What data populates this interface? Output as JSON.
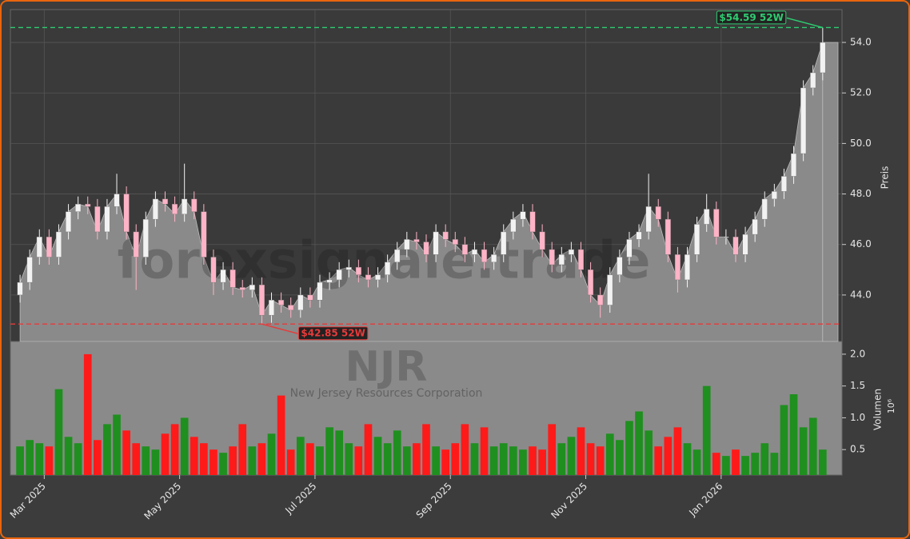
{
  "chart_data": {
    "type": "candlestick",
    "watermark": "forexsignale.trade",
    "symbol": "NJR",
    "company": "New Jersey Resources Corporation",
    "y_label": "Preis",
    "y2_label": "Volumen",
    "volume_unit": "10⁶",
    "x": [
      1,
      2,
      3,
      4,
      5,
      6,
      7,
      8,
      9,
      10,
      11,
      12,
      13,
      14,
      15,
      16,
      17,
      18,
      19,
      20,
      21,
      22,
      23,
      24,
      25,
      26,
      27,
      28,
      29,
      30,
      31,
      32,
      33,
      34,
      35,
      36,
      37,
      38,
      39,
      40,
      41,
      42,
      43,
      44,
      45,
      46,
      47,
      48,
      49,
      50,
      51,
      52,
      53,
      54,
      55,
      56,
      57,
      58,
      59,
      60,
      61,
      62,
      63,
      64,
      65,
      66,
      67,
      68,
      69,
      70,
      71,
      72,
      73,
      74,
      75,
      76,
      77,
      78,
      79,
      80,
      81,
      82,
      83,
      84
    ],
    "open": [
      44.0,
      44.5,
      45.5,
      46.3,
      45.5,
      46.5,
      47.3,
      47.6,
      47.5,
      46.5,
      47.5,
      48.0,
      46.5,
      45.5,
      47.0,
      47.8,
      47.6,
      47.2,
      47.8,
      47.3,
      45.5,
      44.5,
      45.0,
      44.3,
      44.2,
      44.4,
      43.2,
      43.8,
      43.6,
      43.4,
      44.0,
      43.8,
      44.5,
      44.6,
      45.0,
      45.1,
      44.8,
      44.6,
      44.8,
      45.3,
      45.8,
      46.2,
      46.1,
      45.6,
      46.5,
      46.2,
      46.0,
      45.6,
      45.8,
      45.3,
      45.6,
      46.5,
      47.0,
      47.3,
      46.5,
      45.8,
      45.2,
      45.6,
      45.8,
      45.0,
      44.0,
      43.6,
      44.8,
      45.5,
      46.2,
      46.5,
      47.5,
      47.0,
      45.6,
      44.6,
      45.6,
      46.8,
      47.4,
      46.3,
      46.3,
      45.6,
      46.4,
      47.0,
      47.8,
      48.1,
      48.7,
      49.6,
      52.2,
      52.8
    ],
    "high": [
      44.8,
      45.8,
      46.6,
      46.6,
      46.8,
      47.6,
      47.9,
      47.9,
      47.8,
      47.8,
      48.8,
      48.3,
      46.8,
      47.3,
      48.1,
      48.1,
      47.9,
      49.2,
      48.1,
      47.6,
      45.8,
      45.3,
      45.3,
      44.6,
      44.7,
      44.7,
      44.1,
      44.1,
      43.9,
      44.3,
      44.3,
      44.8,
      44.9,
      45.3,
      45.4,
      45.4,
      45.1,
      45.1,
      45.6,
      46.1,
      46.5,
      46.5,
      46.4,
      46.8,
      46.8,
      46.5,
      46.3,
      46.1,
      46.1,
      45.9,
      46.8,
      47.3,
      47.6,
      47.6,
      46.8,
      46.1,
      45.9,
      46.1,
      46.1,
      45.3,
      44.3,
      45.1,
      45.8,
      46.5,
      46.8,
      48.8,
      47.8,
      47.3,
      45.9,
      45.9,
      47.1,
      48.0,
      47.7,
      46.6,
      46.6,
      46.7,
      47.3,
      48.1,
      48.4,
      49.0,
      49.9,
      52.5,
      53.1,
      54.59
    ],
    "low": [
      43.7,
      44.2,
      45.2,
      45.2,
      45.2,
      46.2,
      47.0,
      47.2,
      46.2,
      46.2,
      47.2,
      46.2,
      44.2,
      45.2,
      46.7,
      47.3,
      46.9,
      46.9,
      47.0,
      45.2,
      44.0,
      44.2,
      44.0,
      43.9,
      43.9,
      42.85,
      42.9,
      43.3,
      43.1,
      43.1,
      43.5,
      43.5,
      44.2,
      44.3,
      44.7,
      44.5,
      44.3,
      44.3,
      44.5,
      45.0,
      45.5,
      45.8,
      45.3,
      45.3,
      45.9,
      45.7,
      45.3,
      45.3,
      45.0,
      45.0,
      45.3,
      46.2,
      46.7,
      46.2,
      45.5,
      44.9,
      44.9,
      45.3,
      44.7,
      43.7,
      43.1,
      43.3,
      44.5,
      45.2,
      45.9,
      46.2,
      46.7,
      45.3,
      44.1,
      44.3,
      45.3,
      46.5,
      46.0,
      46.0,
      45.3,
      45.3,
      46.1,
      46.7,
      47.5,
      47.8,
      48.4,
      49.3,
      51.9,
      52.5
    ],
    "close": [
      44.5,
      45.5,
      46.3,
      45.5,
      46.5,
      47.3,
      47.6,
      47.5,
      46.5,
      47.5,
      48.0,
      46.5,
      45.5,
      47.0,
      47.8,
      47.6,
      47.2,
      47.8,
      47.3,
      45.5,
      44.5,
      45.0,
      44.3,
      44.2,
      44.4,
      43.2,
      43.8,
      43.6,
      43.4,
      44.0,
      43.8,
      44.5,
      44.6,
      45.0,
      45.1,
      44.8,
      44.6,
      44.8,
      45.3,
      45.8,
      46.2,
      46.1,
      45.6,
      46.5,
      46.2,
      46.0,
      45.6,
      45.8,
      45.3,
      45.6,
      46.5,
      47.0,
      47.3,
      46.5,
      45.8,
      45.2,
      45.6,
      45.8,
      45.0,
      44.0,
      43.6,
      44.8,
      45.5,
      46.2,
      46.5,
      47.5,
      47.0,
      45.6,
      44.6,
      45.6,
      46.8,
      47.4,
      46.3,
      46.3,
      45.6,
      46.4,
      47.0,
      47.8,
      48.1,
      48.7,
      49.6,
      52.2,
      52.8,
      54.0
    ],
    "volume": [
      0.55,
      0.65,
      0.6,
      0.55,
      1.45,
      0.7,
      0.6,
      2.0,
      0.65,
      0.9,
      1.05,
      0.8,
      0.6,
      0.55,
      0.5,
      0.75,
      0.9,
      1.0,
      0.7,
      0.6,
      0.5,
      0.45,
      0.55,
      0.9,
      0.55,
      0.6,
      0.75,
      1.35,
      0.5,
      0.7,
      0.6,
      0.55,
      0.85,
      0.8,
      0.6,
      0.55,
      0.9,
      0.7,
      0.6,
      0.8,
      0.55,
      0.6,
      0.9,
      0.55,
      0.5,
      0.6,
      0.9,
      0.6,
      0.85,
      0.55,
      0.6,
      0.55,
      0.5,
      0.55,
      0.5,
      0.9,
      0.6,
      0.7,
      0.85,
      0.6,
      0.55,
      0.75,
      0.65,
      0.95,
      1.1,
      0.8,
      0.55,
      0.7,
      0.85,
      0.6,
      0.5,
      1.5,
      0.45,
      0.4,
      0.5,
      0.4,
      0.45,
      0.6,
      0.45,
      1.2,
      1.37,
      0.85,
      1.0,
      0.5
    ],
    "up_color": "#f2f2f2",
    "down_color": "#ffb3c6",
    "volume_up_color": "#1f8f1f",
    "volume_down_color": "#ff1a1a",
    "area_color": "#8a8a8a",
    "xlim": [
      0,
      86
    ],
    "xticks": [
      {
        "value": 3.5,
        "label": "Mar 2025"
      },
      {
        "value": 17.5,
        "label": "May 2025"
      },
      {
        "value": 31.5,
        "label": "Jul 2025"
      },
      {
        "value": 45.5,
        "label": "Sep 2025"
      },
      {
        "value": 59.5,
        "label": "Nov 2025"
      },
      {
        "value": 73.5,
        "label": "Jan 2026"
      }
    ],
    "ylim": [
      42.16,
      55.3
    ],
    "yticks": [
      {
        "value": 44,
        "label": "44.0"
      },
      {
        "value": 46,
        "label": "46.0"
      },
      {
        "value": 48,
        "label": "48.0"
      },
      {
        "value": 50,
        "label": "50.0"
      },
      {
        "value": 52,
        "label": "52.0"
      },
      {
        "value": 54,
        "label": "54.0"
      }
    ],
    "y2lim": [
      0.1,
      2.2
    ],
    "y2ticks": [
      0.5,
      {
        "value": 1.0,
        "label": "1.0"
      },
      1.5,
      {
        "value": 2.0,
        "label": "2.0"
      }
    ],
    "grid": true,
    "high_52w": {
      "value": 54.59,
      "label": "$54.59 52W",
      "color": "#2ecc71"
    },
    "low_52w": {
      "value": 42.85,
      "label": "$42.85 52W",
      "color": "#e83a3a"
    }
  }
}
